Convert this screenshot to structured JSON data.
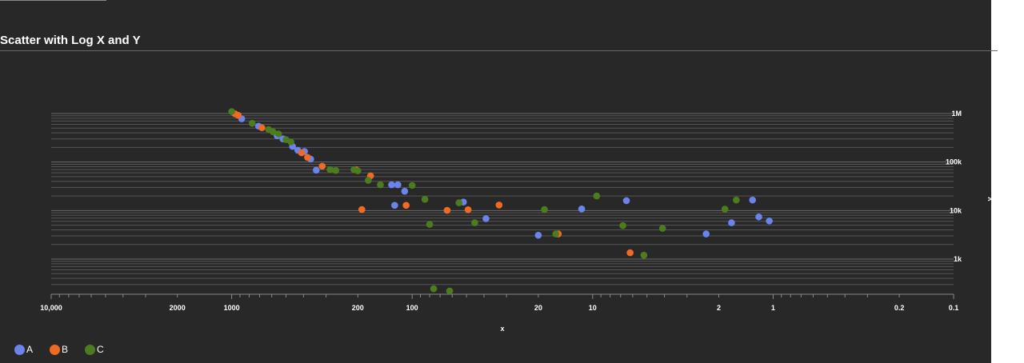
{
  "page": {
    "title": "Scatter with Log X and Y"
  },
  "chart_data": {
    "type": "scatter",
    "title": "Scatter with Log X and Y",
    "xlabel": "x",
    "ylabel": "y",
    "x_scale": "log",
    "y_scale": "log",
    "x_reversed": true,
    "xlim": [
      10000,
      0.1
    ],
    "ylim": [
      180,
      2000000
    ],
    "x_ticks": [
      {
        "value": 10000,
        "label": "10,000"
      },
      {
        "value": 2000,
        "label": "2000"
      },
      {
        "value": 1000,
        "label": "1000"
      },
      {
        "value": 200,
        "label": "200"
      },
      {
        "value": 100,
        "label": "100"
      },
      {
        "value": 20,
        "label": "20"
      },
      {
        "value": 10,
        "label": "10"
      },
      {
        "value": 2,
        "label": "2"
      },
      {
        "value": 1,
        "label": "1"
      },
      {
        "value": 0.2,
        "label": "0.2"
      },
      {
        "value": 0.1,
        "label": "0.1"
      }
    ],
    "y_ticks": [
      {
        "value": 1000,
        "label": "1k"
      },
      {
        "value": 10000,
        "label": "10k"
      },
      {
        "value": 100000,
        "label": "100k"
      },
      {
        "value": 1000000,
        "label": "1M"
      }
    ],
    "grid": true,
    "legend_position": "bottom-left",
    "series": [
      {
        "name": "A",
        "color": "#6b83ec",
        "points": [
          [
            880,
            780000
          ],
          [
            710,
            550000
          ],
          [
            560,
            350000
          ],
          [
            520,
            300000
          ],
          [
            460,
            210000
          ],
          [
            430,
            175000
          ],
          [
            395,
            165000
          ],
          [
            365,
            115000
          ],
          [
            340,
            68000
          ],
          [
            130,
            34000
          ],
          [
            120,
            34000
          ],
          [
            110,
            25000
          ],
          [
            125,
            12800
          ],
          [
            52,
            15000
          ],
          [
            39,
            6800
          ],
          [
            20,
            3100
          ],
          [
            11.5,
            10800
          ],
          [
            6.5,
            16000
          ],
          [
            2.35,
            3300
          ],
          [
            1.7,
            5600
          ],
          [
            1.3,
            16500
          ],
          [
            1.2,
            7400
          ],
          [
            1.05,
            6100
          ]
        ]
      },
      {
        "name": "B",
        "color": "#ef6a24",
        "points": [
          [
            960,
            990000
          ],
          [
            920,
            920000
          ],
          [
            680,
            510000
          ],
          [
            410,
            155000
          ],
          [
            380,
            125000
          ],
          [
            315,
            82000
          ],
          [
            205,
            70000
          ],
          [
            170,
            52000
          ],
          [
            190,
            10500
          ],
          [
            108,
            12800
          ],
          [
            64,
            10100
          ],
          [
            49,
            10400
          ],
          [
            33,
            13000
          ],
          [
            15.5,
            3300
          ],
          [
            6.2,
            1350
          ]
        ]
      },
      {
        "name": "C",
        "color": "#4d7c1f",
        "points": [
          [
            1000,
            1100000
          ],
          [
            770,
            630000
          ],
          [
            625,
            470000
          ],
          [
            590,
            420000
          ],
          [
            550,
            380000
          ],
          [
            500,
            290000
          ],
          [
            470,
            260000
          ],
          [
            285,
            70000
          ],
          [
            265,
            67000
          ],
          [
            210,
            70000
          ],
          [
            200,
            66000
          ],
          [
            175,
            42000
          ],
          [
            150,
            34000
          ],
          [
            100,
            33000
          ],
          [
            85,
            17000
          ],
          [
            80,
            5200
          ],
          [
            55,
            14500
          ],
          [
            45,
            5600
          ],
          [
            18.5,
            10500
          ],
          [
            16,
            3300
          ],
          [
            9.5,
            20000
          ],
          [
            6.8,
            4900
          ],
          [
            5.2,
            1200
          ],
          [
            4.1,
            4300
          ],
          [
            1.85,
            10700
          ],
          [
            1.6,
            16500
          ],
          [
            62,
            220
          ],
          [
            76,
            245
          ]
        ]
      }
    ]
  }
}
